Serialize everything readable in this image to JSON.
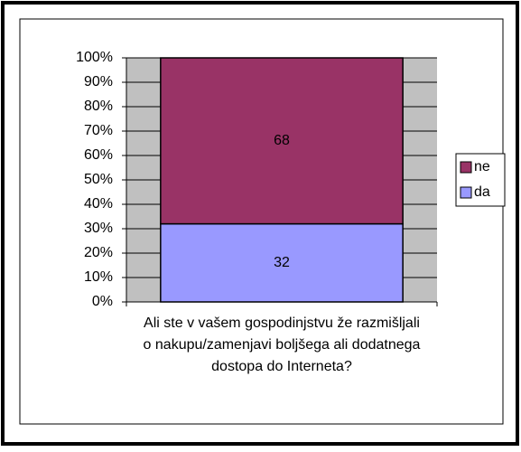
{
  "chart_data": {
    "type": "stacked_bar",
    "categories": [
      "Ali ste v vašem gospodinjstvu že razmišljali o nakupu/zamenjavi boljšega ali dodatnega dostopa do Interneta?"
    ],
    "series": [
      {
        "name": "da",
        "color": "#9999ff",
        "values": [
          32
        ]
      },
      {
        "name": "ne",
        "color": "#993366",
        "values": [
          68
        ]
      }
    ],
    "ylim": [
      0,
      100
    ],
    "yticks": [
      {
        "value": 0,
        "label": "0%"
      },
      {
        "value": 10,
        "label": "10%"
      },
      {
        "value": 20,
        "label": "20%"
      },
      {
        "value": 30,
        "label": "30%"
      },
      {
        "value": 40,
        "label": "40%"
      },
      {
        "value": 50,
        "label": "50%"
      },
      {
        "value": 60,
        "label": "60%"
      },
      {
        "value": 70,
        "label": "70%"
      },
      {
        "value": 80,
        "label": "80%"
      },
      {
        "value": 90,
        "label": "90%"
      },
      {
        "value": 100,
        "label": "100%"
      }
    ],
    "grid": true,
    "legend": "right"
  }
}
